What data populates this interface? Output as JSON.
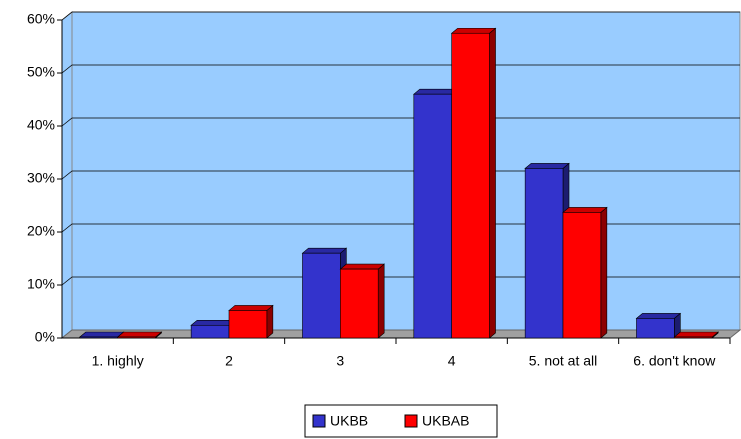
{
  "chart_data": {
    "type": "bar3d",
    "categories": [
      "1. highly",
      "2",
      "3",
      "4",
      "5. not at all",
      "6. don't know"
    ],
    "series": [
      {
        "name": "UKBB",
        "color": "#3333cc",
        "values": [
          0,
          2.4,
          16,
          46,
          32,
          3.7
        ]
      },
      {
        "name": "UKBAB",
        "color": "#ff0000",
        "values": [
          0,
          5.2,
          13,
          57.5,
          23.7,
          0
        ]
      }
    ],
    "ylim": [
      0,
      60
    ],
    "yticks": [
      {
        "value": 0,
        "label": "0%"
      },
      {
        "value": 10,
        "label": "10%"
      },
      {
        "value": 20,
        "label": "20%"
      },
      {
        "value": 30,
        "label": "30%"
      },
      {
        "value": 40,
        "label": "40%"
      },
      {
        "value": 50,
        "label": "50%"
      },
      {
        "value": 60,
        "label": "60%"
      }
    ],
    "grid": true,
    "legend": "bottom",
    "wall_color": "#99ccff",
    "floor_color": "#a0a0a0"
  }
}
